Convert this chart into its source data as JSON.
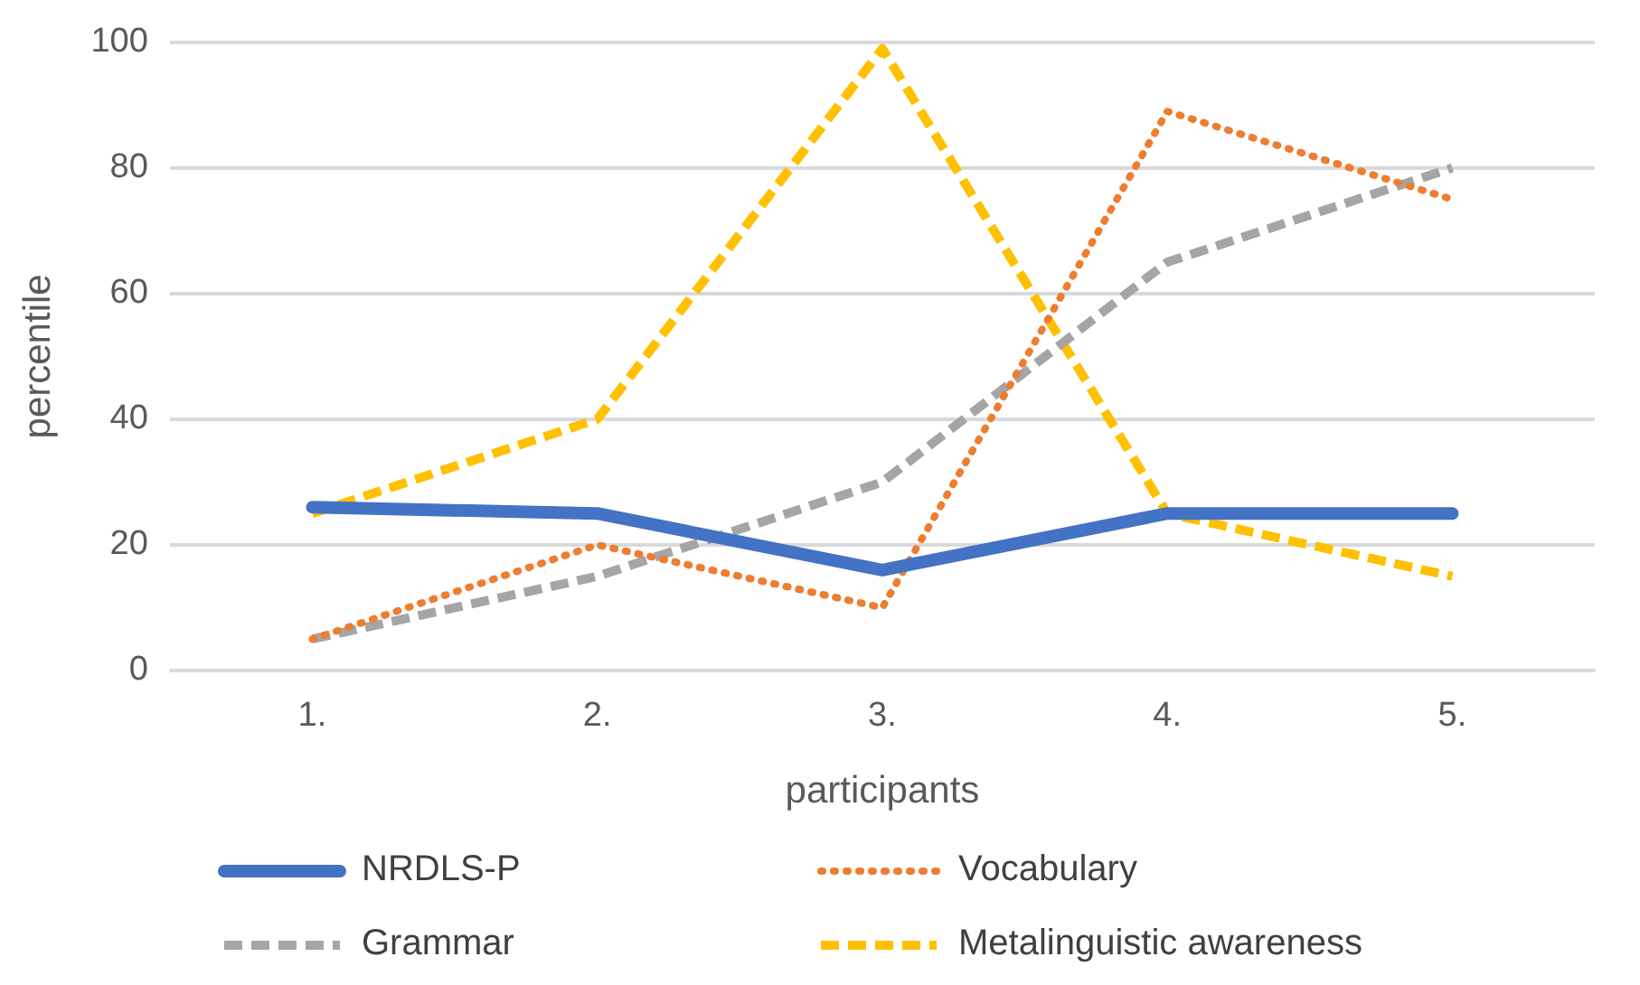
{
  "chart_data": {
    "type": "line",
    "xlabel": "participants",
    "ylabel": "percentile",
    "categories": [
      "1.",
      "2.",
      "3.",
      "4.",
      "5."
    ],
    "series": [
      {
        "name": "NRDLS-P",
        "color": "#4472c4",
        "line_style": "solid",
        "values": [
          26,
          25,
          16,
          25,
          25
        ]
      },
      {
        "name": "Vocabulary",
        "color": "#ed7d31",
        "line_style": "dotted",
        "values": [
          5,
          20,
          10,
          89,
          75
        ]
      },
      {
        "name": "Grammar",
        "color": "#a5a5a5",
        "line_style": "dashed",
        "values": [
          5,
          15,
          30,
          65,
          80
        ]
      },
      {
        "name": "Metalinguistic awareness",
        "color": "#ffc000",
        "line_style": "dashed",
        "values": [
          25,
          40,
          99,
          25,
          15
        ]
      }
    ],
    "ylim": [
      0,
      100
    ],
    "yticks": [
      0,
      20,
      40,
      60,
      80,
      100
    ],
    "grid": "y",
    "legend": "bottom",
    "marker": "none"
  }
}
